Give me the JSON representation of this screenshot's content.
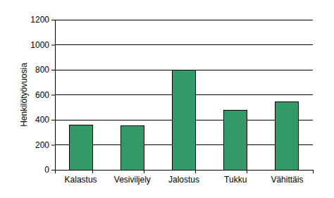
{
  "chart_data": {
    "type": "bar",
    "y_label": "Henkilötyövuosia",
    "categories": [
      "Kalastus",
      "Vesiviljely",
      "Jalostus",
      "Tukku",
      "Vähittäis"
    ],
    "values": [
      360,
      350,
      800,
      475,
      545
    ],
    "color": "#339966",
    "ylim": [
      0,
      1200
    ],
    "yticks": [
      0,
      200,
      400,
      600,
      800,
      1000,
      1200
    ],
    "grid": true
  }
}
